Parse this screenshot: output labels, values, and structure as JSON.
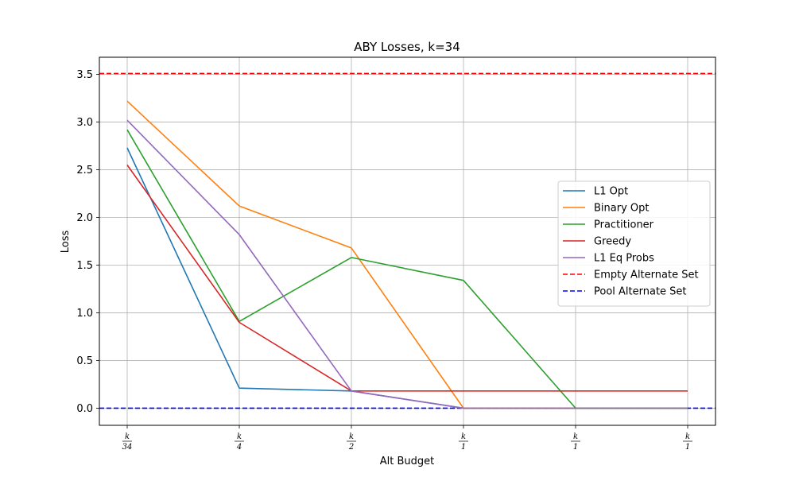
{
  "chart_data": {
    "type": "line",
    "title": "ABY Losses, k=34",
    "xlabel": "Alt Budget",
    "ylabel": "Loss",
    "x_tick_labels": [
      {
        "num": "k",
        "den": "34"
      },
      {
        "num": "k",
        "den": "4"
      },
      {
        "num": "k",
        "den": "2"
      },
      {
        "num": "k",
        "den": "1"
      },
      {
        "num": "k",
        "den": "1"
      },
      {
        "num": "k",
        "den": "1"
      }
    ],
    "x_positions": [
      34,
      4,
      2,
      1,
      1,
      1
    ],
    "y_ticks": [
      "0.0",
      "0.5",
      "1.0",
      "1.5",
      "2.0",
      "2.5",
      "3.0",
      "3.5"
    ],
    "ylim": [
      -0.18,
      3.68
    ],
    "grid": true,
    "legend_position": "center-right",
    "series": [
      {
        "name": "L1 Opt",
        "color": "#1f77b4",
        "values": [
          2.73,
          0.21,
          0.18,
          0.0,
          0.0,
          0.0
        ]
      },
      {
        "name": "Binary Opt",
        "color": "#ff7f0e",
        "values": [
          3.22,
          2.12,
          1.68,
          0.0,
          0.0,
          0.0
        ]
      },
      {
        "name": "Practitioner",
        "color": "#2ca02c",
        "values": [
          2.92,
          0.91,
          1.58,
          1.34,
          0.0,
          0.0
        ]
      },
      {
        "name": "Greedy",
        "color": "#d62728",
        "values": [
          2.55,
          0.9,
          0.18,
          0.18,
          0.18,
          0.18
        ]
      },
      {
        "name": "L1 Eq Probs",
        "color": "#9467bd",
        "values": [
          3.02,
          1.82,
          0.18,
          0.0,
          0.0,
          0.0
        ]
      }
    ],
    "reference_lines": [
      {
        "name": "Empty Alternate Set",
        "color": "#ff0000",
        "value": 3.51
      },
      {
        "name": "Pool Alternate Set",
        "color": "#0000ff",
        "value": 0.0
      }
    ]
  }
}
